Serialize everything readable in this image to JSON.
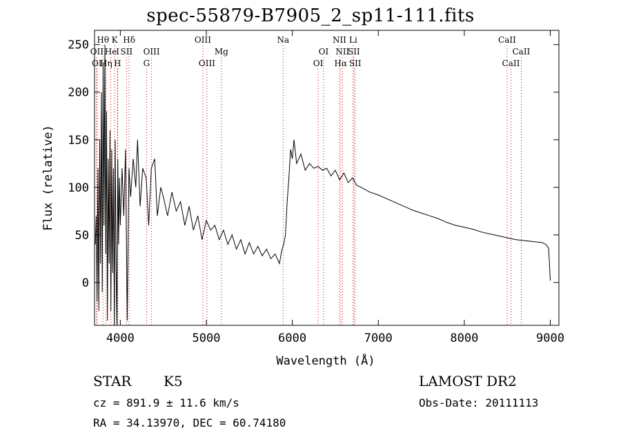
{
  "chart_data": {
    "type": "line",
    "title": "spec-55879-B7905_2_sp11-111.fits",
    "xlabel": "Wavelength (Å)",
    "ylabel": "Flux (relative)",
    "xlim": [
      3700,
      9100
    ],
    "ylim": [
      -45,
      265
    ],
    "xticks": [
      4000,
      5000,
      6000,
      7000,
      8000,
      9000
    ],
    "yticks": [
      0,
      50,
      100,
      150,
      200,
      250
    ],
    "line_color": "#000000",
    "marker_color": "#cc0000",
    "grid": false,
    "series": [
      {
        "values_note_free": true,
        "points": [
          [
            3710,
            40
          ],
          [
            3720,
            70
          ],
          [
            3730,
            -20
          ],
          [
            3740,
            120
          ],
          [
            3750,
            -30
          ],
          [
            3760,
            150
          ],
          [
            3770,
            20
          ],
          [
            3780,
            200
          ],
          [
            3790,
            -10
          ],
          [
            3800,
            230
          ],
          [
            3810,
            60
          ],
          [
            3820,
            250
          ],
          [
            3830,
            30
          ],
          [
            3840,
            180
          ],
          [
            3850,
            -40
          ],
          [
            3860,
            130
          ],
          [
            3870,
            20
          ],
          [
            3880,
            160
          ],
          [
            3890,
            -30
          ],
          [
            3900,
            140
          ],
          [
            3910,
            10
          ],
          [
            3920,
            120
          ],
          [
            3930,
            -45
          ],
          [
            3940,
            150
          ],
          [
            3950,
            20
          ],
          [
            3960,
            -45
          ],
          [
            3970,
            130
          ],
          [
            3980,
            40
          ],
          [
            3990,
            110
          ],
          [
            4000,
            60
          ],
          [
            4020,
            120
          ],
          [
            4040,
            70
          ],
          [
            4060,
            140
          ],
          [
            4080,
            -40
          ],
          [
            4100,
            120
          ],
          [
            4120,
            90
          ],
          [
            4150,
            130
          ],
          [
            4180,
            100
          ],
          [
            4200,
            150
          ],
          [
            4230,
            80
          ],
          [
            4260,
            120
          ],
          [
            4300,
            110
          ],
          [
            4330,
            60
          ],
          [
            4360,
            120
          ],
          [
            4400,
            130
          ],
          [
            4430,
            70
          ],
          [
            4470,
            100
          ],
          [
            4500,
            90
          ],
          [
            4550,
            70
          ],
          [
            4600,
            95
          ],
          [
            4650,
            75
          ],
          [
            4700,
            85
          ],
          [
            4750,
            60
          ],
          [
            4800,
            80
          ],
          [
            4850,
            55
          ],
          [
            4900,
            70
          ],
          [
            4950,
            45
          ],
          [
            5000,
            65
          ],
          [
            5050,
            55
          ],
          [
            5100,
            60
          ],
          [
            5150,
            45
          ],
          [
            5200,
            55
          ],
          [
            5250,
            40
          ],
          [
            5300,
            50
          ],
          [
            5350,
            35
          ],
          [
            5400,
            45
          ],
          [
            5450,
            30
          ],
          [
            5500,
            42
          ],
          [
            5550,
            30
          ],
          [
            5600,
            38
          ],
          [
            5650,
            28
          ],
          [
            5700,
            35
          ],
          [
            5750,
            25
          ],
          [
            5800,
            30
          ],
          [
            5850,
            20
          ],
          [
            5880,
            35
          ],
          [
            5900,
            40
          ],
          [
            5920,
            50
          ],
          [
            5940,
            85
          ],
          [
            5960,
            110
          ],
          [
            5980,
            140
          ],
          [
            6000,
            130
          ],
          [
            6020,
            150
          ],
          [
            6050,
            125
          ],
          [
            6100,
            135
          ],
          [
            6150,
            118
          ],
          [
            6200,
            125
          ],
          [
            6250,
            120
          ],
          [
            6300,
            122
          ],
          [
            6350,
            118
          ],
          [
            6400,
            120
          ],
          [
            6450,
            112
          ],
          [
            6500,
            118
          ],
          [
            6550,
            108
          ],
          [
            6600,
            115
          ],
          [
            6650,
            105
          ],
          [
            6700,
            110
          ],
          [
            6750,
            102
          ],
          [
            6800,
            100
          ],
          [
            6900,
            95
          ],
          [
            7000,
            92
          ],
          [
            7100,
            88
          ],
          [
            7200,
            84
          ],
          [
            7300,
            80
          ],
          [
            7400,
            76
          ],
          [
            7500,
            73
          ],
          [
            7600,
            70
          ],
          [
            7700,
            67
          ],
          [
            7800,
            63
          ],
          [
            7900,
            60
          ],
          [
            8000,
            58
          ],
          [
            8100,
            56
          ],
          [
            8200,
            53
          ],
          [
            8300,
            51
          ],
          [
            8400,
            49
          ],
          [
            8500,
            47
          ],
          [
            8600,
            45
          ],
          [
            8700,
            44
          ],
          [
            8800,
            43
          ],
          [
            8900,
            42
          ],
          [
            8950,
            40
          ],
          [
            8980,
            36
          ],
          [
            8990,
            20
          ],
          [
            9000,
            2
          ]
        ]
      }
    ],
    "lines_top": [
      {
        "label": "Hθ",
        "wl": 3798
      },
      {
        "label": "K",
        "wl": 3934
      },
      {
        "label": "Hδ",
        "wl": 4102
      },
      {
        "label": "OIII",
        "wl": 4959
      },
      {
        "label": "Na",
        "wl": 5893
      },
      {
        "label": "NII",
        "wl": 6548
      },
      {
        "label": "Li",
        "wl": 6708
      },
      {
        "label": "CaII",
        "wl": 8498
      }
    ],
    "lines_mid": [
      {
        "label": "OII",
        "wl": 3727
      },
      {
        "label": "He",
        "wl": 3889
      },
      {
        "label": "I",
        "wl": 3970
      },
      {
        "label": "SII",
        "wl": 4072
      },
      {
        "label": "OIII",
        "wl": 4363
      },
      {
        "label": "Mg",
        "wl": 5175
      },
      {
        "label": "OI",
        "wl": 6364
      },
      {
        "label": "NII",
        "wl": 6583
      },
      {
        "label": "SII",
        "wl": 6716
      },
      {
        "label": "CaII",
        "wl": 8662
      }
    ],
    "lines_bot": [
      {
        "label": "OI",
        "wl": 3727
      },
      {
        "label": "Hη",
        "wl": 3835
      },
      {
        "label": "H",
        "wl": 3968
      },
      {
        "label": "G",
        "wl": 4305
      },
      {
        "label": "OIII",
        "wl": 5007
      },
      {
        "label": "OI",
        "wl": 6300
      },
      {
        "label": "Hα",
        "wl": 6563
      },
      {
        "label": "SII",
        "wl": 6731
      },
      {
        "label": "CaII",
        "wl": 8542
      }
    ]
  },
  "info": {
    "obj_class": "STAR",
    "obj_subclass": "K5",
    "survey": "LAMOST DR2",
    "cz": "cz = 891.9 ± 11.6 km/s",
    "obs_date": "Obs-Date: 20111113",
    "radec": "RA =  34.13970, DEC =  60.74180"
  }
}
